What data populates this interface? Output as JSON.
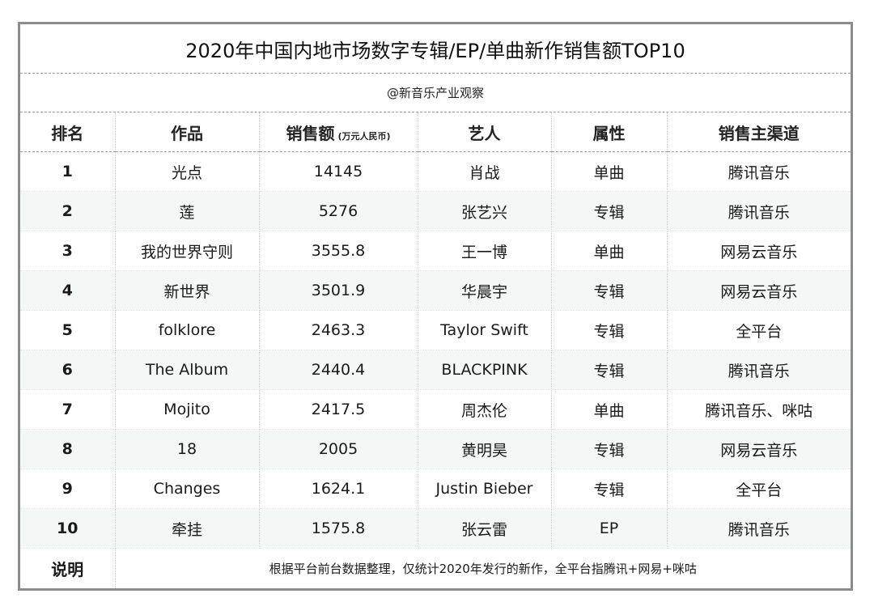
{
  "title": "2020年中国内地市场数字专辑/EP/单曲新作销售额TOP10",
  "source": "@新音乐产业观察",
  "headers": {
    "rank": "排名",
    "work": "作品",
    "sales": "销售额",
    "sales_unit": "(万元人民币)",
    "artist": "艺人",
    "type": "属性",
    "channel": "销售主渠道"
  },
  "rows": [
    {
      "rank": "1",
      "work": "光点",
      "sales": "14145",
      "artist": "肖战",
      "type": "单曲",
      "channel": "腾讯音乐"
    },
    {
      "rank": "2",
      "work": "莲",
      "sales": "5276",
      "artist": "张艺兴",
      "type": "专辑",
      "channel": "腾讯音乐"
    },
    {
      "rank": "3",
      "work": "我的世界守则",
      "sales": "3555.8",
      "artist": "王一博",
      "type": "单曲",
      "channel": "网易云音乐"
    },
    {
      "rank": "4",
      "work": "新世界",
      "sales": "3501.9",
      "artist": "华晨宇",
      "type": "专辑",
      "channel": "网易云音乐"
    },
    {
      "rank": "5",
      "work": "folklore",
      "sales": "2463.3",
      "artist": "Taylor Swift",
      "type": "专辑",
      "channel": "全平台"
    },
    {
      "rank": "6",
      "work": "The Album",
      "sales": "2440.4",
      "artist": "BLACKPINK",
      "type": "专辑",
      "channel": "腾讯音乐"
    },
    {
      "rank": "7",
      "work": "Mojito",
      "sales": "2417.5",
      "artist": "周杰伦",
      "type": "单曲",
      "channel": "腾讯音乐、咪咕"
    },
    {
      "rank": "8",
      "work": "18",
      "sales": "2005",
      "artist": "黄明昊",
      "type": "专辑",
      "channel": "网易云音乐"
    },
    {
      "rank": "9",
      "work": "Changes",
      "sales": "1624.1",
      "artist": "Justin Bieber",
      "type": "专辑",
      "channel": "全平台"
    },
    {
      "rank": "10",
      "work": "牵挂",
      "sales": "1575.8",
      "artist": "张云雷",
      "type": "EP",
      "channel": "腾讯音乐"
    }
  ],
  "note": {
    "label": "说明",
    "text": "根据平台前台数据整理，仅统计2020年发行的新作，全平台指腾讯+网易+咪咕"
  },
  "colors": {
    "frame_border": "#8c8c8c",
    "alt_row_background": "#f3f8f6",
    "divider": "#9a9a9a"
  }
}
